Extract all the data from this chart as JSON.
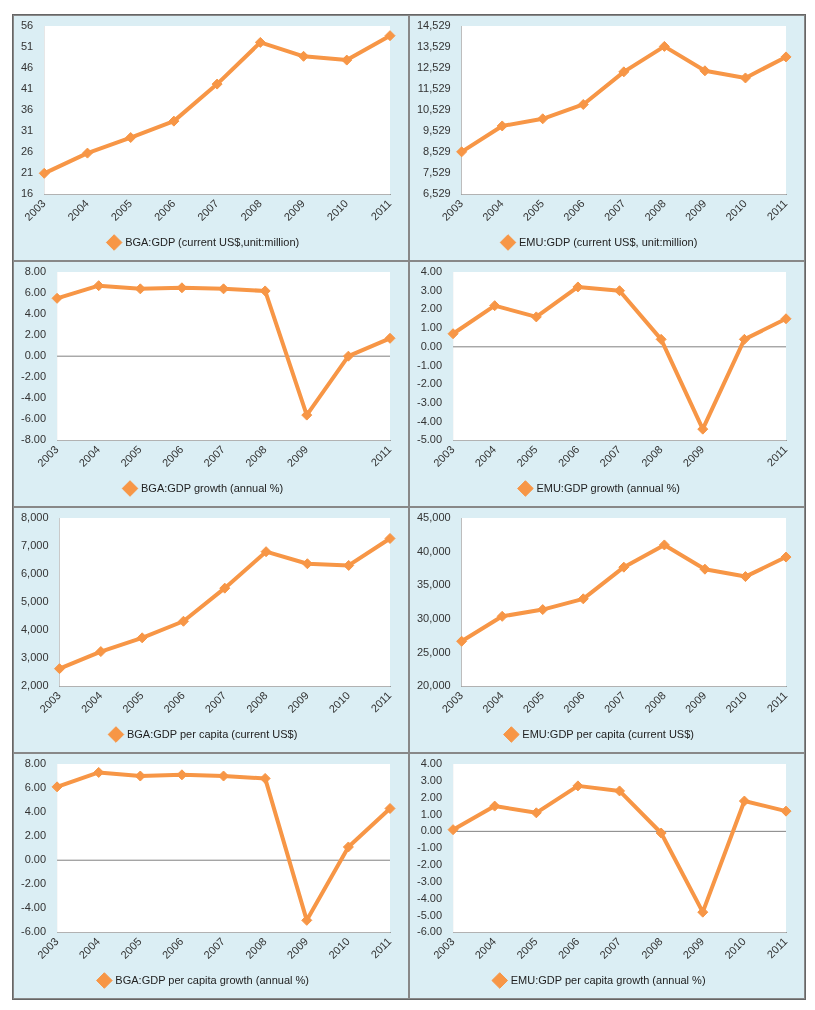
{
  "chart_data": [
    {
      "type": "line",
      "categories": [
        "2003",
        "2004",
        "2005",
        "2006",
        "2007",
        "2008",
        "2009",
        "2010",
        "2011"
      ],
      "series": [
        {
          "name": "BGA:GDP (current US$,unit:million)",
          "color": "#f79646",
          "values": [
            21,
            25.8,
            29.5,
            33.4,
            42.2,
            52.1,
            48.8,
            47.9,
            53.7
          ]
        }
      ],
      "ylim": [
        16,
        56
      ],
      "yticks": [
        16,
        21,
        26,
        31,
        36,
        41,
        46,
        51,
        56
      ],
      "grid": false,
      "legend": "bottom",
      "marker": "diamond",
      "line_style": "solid"
    },
    {
      "type": "line",
      "categories": [
        "2003",
        "2004",
        "2005",
        "2006",
        "2007",
        "2008",
        "2009",
        "2010",
        "2011"
      ],
      "series": [
        {
          "name": "EMU:GDP (current US$, unit:million)",
          "color": "#f79646",
          "values": [
            8550,
            9780,
            10120,
            10800,
            12350,
            13560,
            12400,
            12060,
            13060
          ]
        }
      ],
      "ylim": [
        6529,
        14529
      ],
      "yticks": [
        {
          "value": 6529,
          "label": "6,529"
        },
        {
          "value": 7529,
          "label": "7,529"
        },
        {
          "value": 8529,
          "label": "8,529"
        },
        {
          "value": 9529,
          "label": "9,529"
        },
        {
          "value": 10529,
          "label": "10,529"
        },
        {
          "value": 11529,
          "label": "11,529"
        },
        {
          "value": 12529,
          "label": "12,529"
        },
        {
          "value": 13529,
          "label": "13,529"
        },
        {
          "value": 14529,
          "label": "14,529"
        }
      ],
      "grid": false,
      "legend": "bottom",
      "marker": "diamond",
      "line_style": "solid"
    },
    {
      "type": "line",
      "categories": [
        "2003",
        "2004",
        "2005",
        "2006",
        "2007",
        "2008",
        "2009",
        null,
        "2011"
      ],
      "series": [
        {
          "name": "BGA:GDP growth (annual %)",
          "color": "#f79646",
          "values": [
            5.5,
            6.7,
            6.4,
            6.5,
            6.4,
            6.2,
            -5.6,
            0,
            1.7
          ]
        }
      ],
      "ylim": [
        -8,
        8
      ],
      "yticks": [
        {
          "value": -8,
          "label": "-8.00"
        },
        {
          "value": -6,
          "label": "-6.00"
        },
        {
          "value": -4,
          "label": "-4.00"
        },
        {
          "value": -2,
          "label": "-2.00"
        },
        {
          "value": 0,
          "label": "0.00"
        },
        {
          "value": 2,
          "label": "2.00"
        },
        {
          "value": 4,
          "label": "4.00"
        },
        {
          "value": 6,
          "label": "6.00"
        },
        {
          "value": 8,
          "label": "8.00"
        }
      ],
      "ref_lines": [
        {
          "axis": "y",
          "value": 0,
          "color": "#808080"
        }
      ],
      "grid": false,
      "legend": "bottom",
      "marker": "diamond",
      "line_style": "solid"
    },
    {
      "type": "line",
      "categories": [
        "2003",
        "2004",
        "2005",
        "2006",
        "2007",
        "2008",
        "2009",
        null,
        "2011"
      ],
      "series": [
        {
          "name": "EMU:GDP growth (annual %)",
          "color": "#f79646",
          "values": [
            0.7,
            2.2,
            1.6,
            3.2,
            3.0,
            0.4,
            -4.4,
            0.4,
            1.5
          ]
        }
      ],
      "ylim": [
        -5,
        4
      ],
      "yticks": [
        {
          "value": -5,
          "label": "-5.00"
        },
        {
          "value": -4,
          "label": "-4.00"
        },
        {
          "value": -3,
          "label": "-3.00"
        },
        {
          "value": -2,
          "label": "-2.00"
        },
        {
          "value": -1,
          "label": "-1.00"
        },
        {
          "value": 0,
          "label": "0.00"
        },
        {
          "value": 1,
          "label": "1.00"
        },
        {
          "value": 2,
          "label": "2.00"
        },
        {
          "value": 3,
          "label": "3.00"
        },
        {
          "value": 4,
          "label": "4.00"
        }
      ],
      "ref_lines": [
        {
          "axis": "y",
          "value": 0,
          "color": "#808080"
        }
      ],
      "grid": false,
      "legend": "bottom",
      "marker": "diamond",
      "line_style": "solid"
    },
    {
      "type": "line",
      "categories": [
        "2003",
        "2004",
        "2005",
        "2006",
        "2007",
        "2008",
        "2009",
        "2010",
        "2011"
      ],
      "series": [
        {
          "name": "BGA:GDP per capita (current US$)",
          "color": "#f79646",
          "values": [
            2630,
            3240,
            3730,
            4320,
            5500,
            6800,
            6370,
            6310,
            7270
          ]
        }
      ],
      "ylim": [
        2000,
        8000
      ],
      "yticks": [
        {
          "value": 2000,
          "label": "2,000"
        },
        {
          "value": 3000,
          "label": "3,000"
        },
        {
          "value": 4000,
          "label": "4,000"
        },
        {
          "value": 5000,
          "label": "5,000"
        },
        {
          "value": 6000,
          "label": "6,000"
        },
        {
          "value": 7000,
          "label": "7,000"
        },
        {
          "value": 8000,
          "label": "8,000"
        }
      ],
      "grid": false,
      "legend": "bottom",
      "marker": "diamond",
      "line_style": "solid"
    },
    {
      "type": "line",
      "categories": [
        "2003",
        "2004",
        "2005",
        "2006",
        "2007",
        "2008",
        "2009",
        "2010",
        "2011"
      ],
      "series": [
        {
          "name": "EMU:GDP per capita (current US$)",
          "color": "#f79646",
          "values": [
            26700,
            30400,
            31400,
            33000,
            37700,
            41000,
            37400,
            36300,
            39200
          ]
        }
      ],
      "ylim": [
        20000,
        45000
      ],
      "yticks": [
        {
          "value": 20000,
          "label": "20,000"
        },
        {
          "value": 25000,
          "label": "25,000"
        },
        {
          "value": 30000,
          "label": "30,000"
        },
        {
          "value": 35000,
          "label": "35,000"
        },
        {
          "value": 40000,
          "label": "40,000"
        },
        {
          "value": 45000,
          "label": "45,000"
        }
      ],
      "grid": false,
      "legend": "bottom",
      "marker": "diamond",
      "line_style": "solid"
    },
    {
      "type": "line",
      "categories": [
        "2003",
        "2004",
        "2005",
        "2006",
        "2007",
        "2008",
        "2009",
        "2010",
        "2011"
      ],
      "series": [
        {
          "name": "BGA:GDP per capita growth (annual %)",
          "color": "#f79646",
          "values": [
            6.1,
            7.3,
            7.0,
            7.1,
            7.0,
            6.8,
            -5.0,
            1.1,
            4.3
          ]
        }
      ],
      "ylim": [
        -6,
        8
      ],
      "yticks": [
        {
          "value": -6,
          "label": "-6.00"
        },
        {
          "value": -4,
          "label": "-4.00"
        },
        {
          "value": -2,
          "label": "-2.00"
        },
        {
          "value": 0,
          "label": "0.00"
        },
        {
          "value": 2,
          "label": "2.00"
        },
        {
          "value": 4,
          "label": "4.00"
        },
        {
          "value": 6,
          "label": "6.00"
        },
        {
          "value": 8,
          "label": "8.00"
        }
      ],
      "ref_lines": [
        {
          "axis": "y",
          "value": 0,
          "color": "#808080"
        }
      ],
      "grid": false,
      "legend": "bottom",
      "marker": "diamond",
      "line_style": "solid"
    },
    {
      "type": "line",
      "categories": [
        "2003",
        "2004",
        "2005",
        "2006",
        "2007",
        "2008",
        "2009",
        "2010",
        "2011"
      ],
      "series": [
        {
          "name": "EMU:GDP per capita growth (annual %)",
          "color": "#f79646",
          "values": [
            0.1,
            1.5,
            1.1,
            2.7,
            2.4,
            -0.1,
            -4.8,
            1.8,
            1.2
          ]
        }
      ],
      "ylim": [
        -6,
        4
      ],
      "yticks": [
        {
          "value": -6,
          "label": "-6.00"
        },
        {
          "value": -5,
          "label": "-5.00"
        },
        {
          "value": -4,
          "label": "-4.00"
        },
        {
          "value": -3,
          "label": "-3.00"
        },
        {
          "value": -2,
          "label": "-2.00"
        },
        {
          "value": -1,
          "label": "-1.00"
        },
        {
          "value": 0,
          "label": "0.00"
        },
        {
          "value": 1,
          "label": "1.00"
        },
        {
          "value": 2,
          "label": "2.00"
        },
        {
          "value": 3,
          "label": "3.00"
        },
        {
          "value": 4,
          "label": "4.00"
        }
      ],
      "ref_lines": [
        {
          "axis": "y",
          "value": 0,
          "color": "#808080"
        }
      ],
      "grid": false,
      "legend": "bottom",
      "marker": "diamond",
      "line_style": "solid"
    }
  ]
}
